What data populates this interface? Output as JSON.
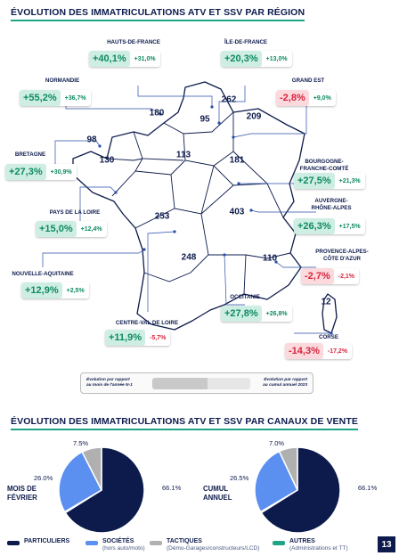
{
  "titles": {
    "regions": "ÉVOLUTION DES IMMATRICULATIONS ATV ET SSV PAR RÉGION",
    "channels": "ÉVOLUTION DES IMMATRICULATIONS ATV ET SSV PAR CANAUX DE VENTE"
  },
  "colors": {
    "accent": "#1ea586",
    "navy": "#0d1b4c",
    "positive": "#0e8a63",
    "negative": "#d7263d"
  },
  "regions": [
    {
      "id": "hdf",
      "name": "HAUTS-DE-FRANCE",
      "month": "+40,1%",
      "cumul": "+31,0%",
      "count": "262"
    },
    {
      "id": "idf",
      "name": "ÎLE-DE-FRANCE",
      "month": "+20,3%",
      "cumul": "+13,0%",
      "count": "95"
    },
    {
      "id": "nor",
      "name": "NORMANDIE",
      "month": "+55,2%",
      "cumul": "+36,7%",
      "count": "180"
    },
    {
      "id": "ge",
      "name": "GRAND EST",
      "month": "-2,8%",
      "cumul": "+9,0%",
      "count": "209"
    },
    {
      "id": "bre",
      "name": "BRETAGNE",
      "month": "+27,3%",
      "cumul": "+30,9%",
      "count": "98"
    },
    {
      "id": "bfc",
      "name": "BOURGOGNE-\nFRANCHE-COMTÉ",
      "month": "+27,5%",
      "cumul": "+21,3%",
      "count": "181"
    },
    {
      "id": "pdl",
      "name": "PAYS DE LA LOIRE",
      "month": "+15,0%",
      "cumul": "+12,4%",
      "count": "130"
    },
    {
      "id": "ara",
      "name": "AUVERGNE-\nRHÔNE-ALPES",
      "month": "+26,3%",
      "cumul": "+17,5%",
      "count": "403"
    },
    {
      "id": "na",
      "name": "NOUVELLE-AQUITAINE",
      "month": "+12,9%",
      "cumul": "+2,5%",
      "count": "253"
    },
    {
      "id": "paca",
      "name": "PROVENCE-ALPES-\nCÔTE D'AZUR",
      "month": "-2,7%",
      "cumul": "-2,1%",
      "count": "110"
    },
    {
      "id": "occ",
      "name": "OCCITANIE",
      "month": "+27,8%",
      "cumul": "+26,8%",
      "count": "248"
    },
    {
      "id": "cvl",
      "name": "CENTRE-VAL DE LOIRE",
      "month": "+11,9%",
      "cumul": "-5,7%",
      "count": "113"
    },
    {
      "id": "cor",
      "name": "CORSE",
      "month": "-14,3%",
      "cumul": "-17,2%",
      "count": "12"
    }
  ],
  "legend_box": {
    "left": "Évolution par rapport\nau mois de l'année N-1",
    "right": "Évolution par rapport\nau cumul annuel 2023"
  },
  "chart_data": [
    {
      "type": "pie",
      "title": "MOIS DE\nFÉVRIER",
      "categories": [
        "PARTICULIERS",
        "SOCIÉTÉS",
        "TACTIQUES",
        "AUTRES"
      ],
      "values": [
        66.1,
        26.0,
        7.5,
        0.4
      ],
      "labels": [
        "66.1%",
        "26.0%",
        "7.5%",
        ""
      ]
    },
    {
      "type": "pie",
      "title": "CUMUL\nANNUEL",
      "categories": [
        "PARTICULIERS",
        "SOCIÉTÉS",
        "TACTIQUES",
        "AUTRES"
      ],
      "values": [
        66.1,
        26.5,
        7.0,
        0.4
      ],
      "labels": [
        "66.1%",
        "26.5%",
        "7.0%",
        ""
      ]
    }
  ],
  "legend": [
    {
      "label": "PARTICULIERS",
      "sub": "",
      "color": "#0d1b4c"
    },
    {
      "label": "SOCIÉTÉS",
      "sub": "(hors auto/moto)",
      "color": "#5b8ff0"
    },
    {
      "label": "TACTIQUES",
      "sub": "(Démo-Garages/constructeurs/LCD)",
      "color": "#b0b0b0"
    },
    {
      "label": "AUTRES",
      "sub": "(Administrations et TT)",
      "color": "#1ea586"
    }
  ],
  "page_number": "13"
}
